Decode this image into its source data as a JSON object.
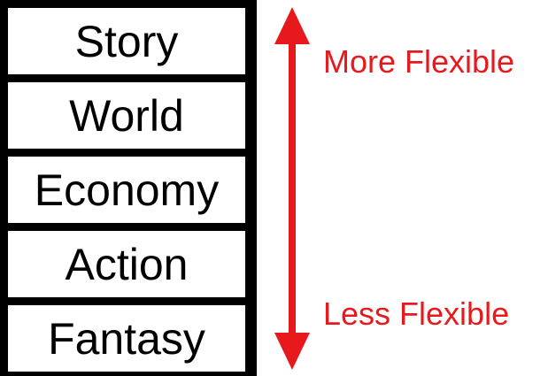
{
  "layers": [
    {
      "label": "Story"
    },
    {
      "label": "World"
    },
    {
      "label": "Economy"
    },
    {
      "label": "Action"
    },
    {
      "label": "Fantasy"
    }
  ],
  "scale": {
    "top_label": "More Flexible",
    "bottom_label": "Less Flexible",
    "arrow_color": "#e8191d"
  }
}
